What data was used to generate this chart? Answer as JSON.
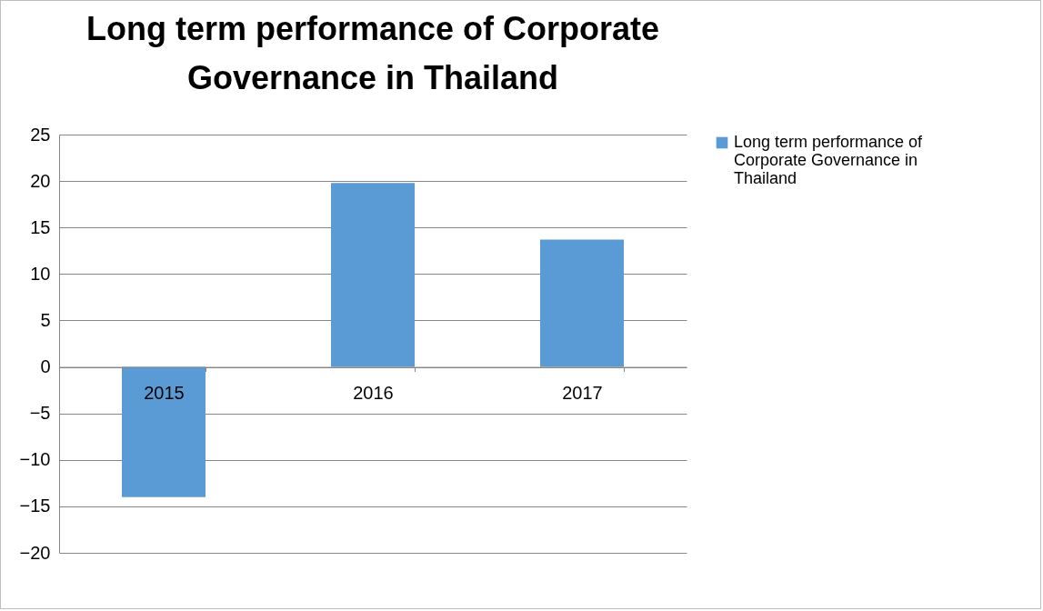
{
  "chart_data": {
    "type": "bar",
    "title": "Long term performance of Corporate Governance in Thailand",
    "categories": [
      "2015",
      "2016",
      "2017"
    ],
    "series": [
      {
        "name": "Long term performance of Corporate Governance in Thailand",
        "color": "#5b9bd5",
        "values": [
          -14.0,
          19.8,
          13.7
        ]
      }
    ],
    "ylim": [
      -20,
      25
    ],
    "yticks": [
      -20,
      -15,
      -10,
      -5,
      0,
      5,
      10,
      15,
      20,
      25
    ],
    "grid": "y",
    "legend": "right"
  }
}
